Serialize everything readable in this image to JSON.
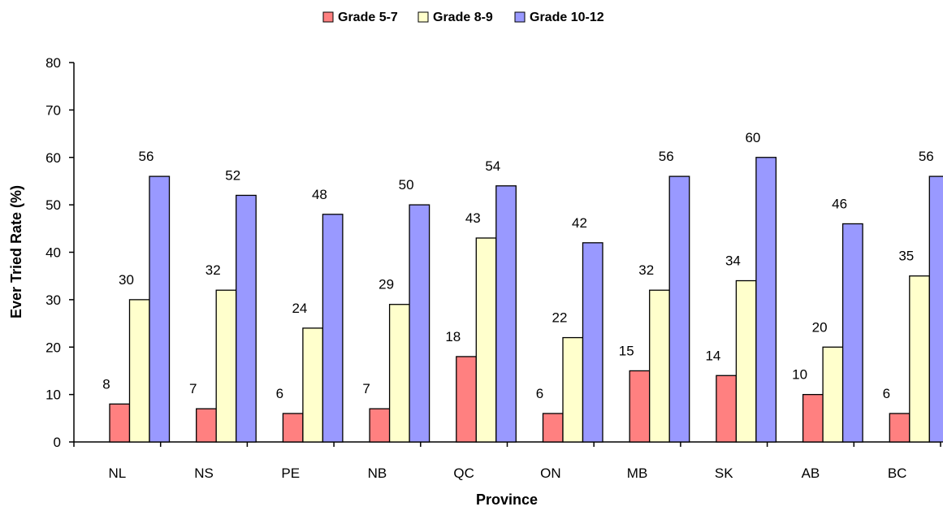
{
  "chart_data": {
    "type": "bar",
    "title": "",
    "xlabel": "Province",
    "ylabel": "Ever Tried Rate (%)",
    "ylim": [
      0,
      80
    ],
    "yticks": [
      "0",
      "10",
      "20",
      "30",
      "40",
      "50",
      "60",
      "70",
      "80"
    ],
    "categories": [
      "NL",
      "NS",
      "PE",
      "NB",
      "QC",
      "ON",
      "MB",
      "SK",
      "AB",
      "BC"
    ],
    "grid": false,
    "legend_position": "top-center",
    "series": [
      {
        "name": "Grade 5-7",
        "color": "#ff8080",
        "values": [
          8,
          7,
          6,
          7,
          18,
          6,
          15,
          14,
          10,
          6
        ],
        "labels": [
          "8",
          "7",
          "6",
          "7",
          "18",
          "6",
          "15",
          "14",
          "10",
          "6"
        ]
      },
      {
        "name": "Grade 8-9",
        "color": "#ffffcc",
        "values": [
          30,
          32,
          24,
          29,
          43,
          22,
          32,
          34,
          20,
          35
        ],
        "labels": [
          "30",
          "32",
          "24",
          "29",
          "43",
          "22",
          "32",
          "34",
          "20",
          "35"
        ]
      },
      {
        "name": "Grade 10-12",
        "color": "#9999ff",
        "values": [
          56,
          52,
          48,
          50,
          54,
          42,
          56,
          60,
          46,
          56
        ],
        "labels": [
          "56",
          "52",
          "48",
          "50",
          "54",
          "42",
          "56",
          "60",
          "46",
          "56"
        ]
      }
    ]
  }
}
